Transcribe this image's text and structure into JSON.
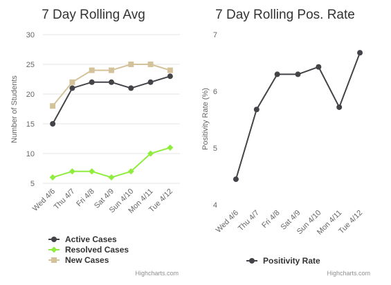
{
  "chart_data": [
    {
      "type": "line",
      "title": "7 Day Rolling Avg",
      "xlabel": "",
      "ylabel": "Number of Students",
      "categories": [
        "Wed 4/6",
        "Thu 4/7",
        "Fri 4/8",
        "Sat 4/9",
        "Sun 4/10",
        "Mon 4/11",
        "Tue 4/12"
      ],
      "ylim": [
        5,
        30
      ],
      "yticks": [
        5,
        10,
        15,
        20,
        25,
        30
      ],
      "grid": true,
      "legend_position": "bottom-left",
      "series": [
        {
          "name": "Active Cases",
          "color": "#434348",
          "marker": "circle",
          "values": [
            15,
            21,
            22,
            22,
            21,
            22,
            23
          ]
        },
        {
          "name": "Resolved Cases",
          "color": "#90ed3d",
          "marker": "diamond",
          "values": [
            6,
            7,
            7,
            6,
            7,
            10,
            11
          ]
        },
        {
          "name": "New Cases",
          "color": "#d4c29a",
          "marker": "square",
          "values": [
            18,
            22,
            24,
            24,
            25,
            25,
            24
          ]
        }
      ],
      "credit": "Highcharts.com"
    },
    {
      "type": "line",
      "title": "7 Day Rolling Pos. Rate",
      "xlabel": "",
      "ylabel": "Positivity Rate (%)",
      "categories": [
        "Wed 4/6",
        "Thu 4/7",
        "Fri 4/8",
        "Sat 4/9",
        "Sun 4/10",
        "Mon 4/11",
        "Tue 4/12"
      ],
      "ylim": [
        4,
        7
      ],
      "yticks": [
        4,
        5,
        6,
        7
      ],
      "grid": false,
      "legend_position": "bottom-center",
      "series": [
        {
          "name": "Positivity Rate",
          "color": "#434348",
          "marker": "circle",
          "values": [
            4.45,
            5.68,
            6.3,
            6.3,
            6.43,
            5.72,
            6.68
          ]
        }
      ],
      "credit": "Highcharts.com"
    }
  ]
}
